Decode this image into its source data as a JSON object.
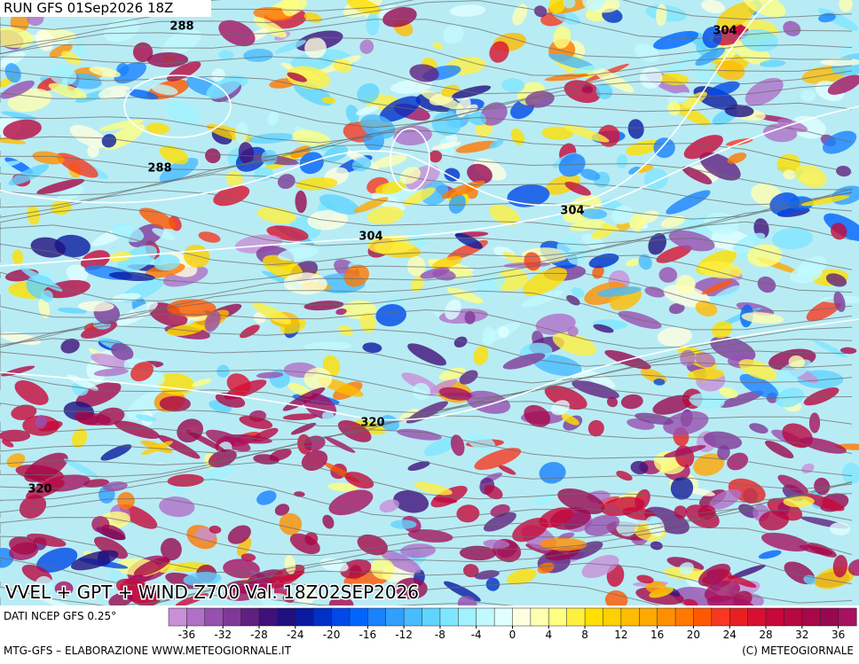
{
  "header": {
    "run": "RUN GFS 01Sep2026 18Z"
  },
  "map": {
    "title": "VVEL + GPT + WIND Z700 Val. 18Z02SEP2026",
    "contour_labels": [
      288,
      288,
      304,
      304,
      304,
      320,
      320
    ]
  },
  "colorbar": {
    "source": "DATI NCEP GFS 0.25°",
    "range": [
      -38,
      38
    ],
    "ticks": [
      -36,
      -32,
      -28,
      -24,
      -20,
      -16,
      -12,
      -8,
      -4,
      0,
      4,
      8,
      12,
      16,
      20,
      24,
      28,
      32,
      36
    ],
    "colors": [
      "#c890d8",
      "#b070c8",
      "#9850b0",
      "#803898",
      "#602080",
      "#40107a",
      "#201080",
      "#0a1aa0",
      "#0030c8",
      "#0048e8",
      "#0064ff",
      "#1a82ff",
      "#30a0ff",
      "#48bcff",
      "#60d4ff",
      "#80e6ff",
      "#a0f2ff",
      "#c0faff",
      "#e0ffff",
      "#ffffe0",
      "#ffffb0",
      "#ffff80",
      "#fff040",
      "#ffe000",
      "#ffd000",
      "#ffbc00",
      "#ffa800",
      "#ff9000",
      "#ff7800",
      "#ff5800",
      "#f83820",
      "#e82020",
      "#d81030",
      "#c80838",
      "#b80840",
      "#a80848",
      "#980850",
      "#a81060"
    ]
  },
  "footer": {
    "left": "MTG-GFS – ELABORAZIONE WWW.METEOGIORNALE.IT",
    "right": "(C) METEOGIORNALE"
  }
}
